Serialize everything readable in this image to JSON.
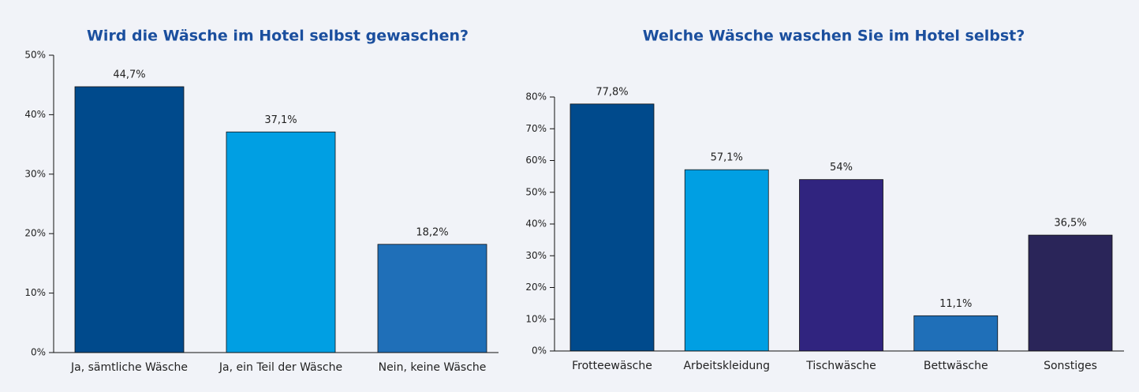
{
  "chart_data": [
    {
      "type": "bar",
      "title": "Wird die Wäsche im Hotel selbst gewaschen?",
      "categories": [
        "Ja, sämtliche Wäsche",
        "Ja, ein Teil der Wäsche",
        "Nein, keine Wäsche"
      ],
      "values": [
        44.7,
        37.1,
        18.2
      ],
      "value_labels": [
        "44,7%",
        "37,1%",
        "18,2%"
      ],
      "colors": [
        "#004a8c",
        "#009fe3",
        "#1f6fb8"
      ],
      "ylim": [
        0,
        50
      ],
      "yticks": [
        {
          "value": 0,
          "label": "0%"
        },
        {
          "value": 10,
          "label": "10%"
        },
        {
          "value": 20,
          "label": "20%"
        },
        {
          "value": 30,
          "label": "30%"
        },
        {
          "value": 40,
          "label": "40%"
        },
        {
          "value": 50,
          "label": "50%"
        }
      ]
    },
    {
      "type": "bar",
      "title": "Welche Wäsche waschen Sie im Hotel selbst?",
      "categories": [
        "Frotteewäsche",
        "Arbeitskleidung",
        "Tischwäsche",
        "Bettwäsche",
        "Sonstiges"
      ],
      "values": [
        77.8,
        57.1,
        54,
        11.1,
        36.5
      ],
      "value_labels": [
        "77,8%",
        "57,1%",
        "54%",
        "11,1%",
        "36,5%"
      ],
      "colors": [
        "#004a8c",
        "#009fe3",
        "#30247f",
        "#1f6fb8",
        "#2a2559"
      ],
      "ylim": [
        0,
        80
      ],
      "yticks": [
        {
          "value": 0,
          "label": "0%"
        },
        {
          "value": 10,
          "label": "10%"
        },
        {
          "value": 20,
          "label": "20%"
        },
        {
          "value": 30,
          "label": "30%"
        },
        {
          "value": 40,
          "label": "40%"
        },
        {
          "value": 50,
          "label": "50%"
        },
        {
          "value": 60,
          "label": "60%"
        },
        {
          "value": 70,
          "label": "70%"
        },
        {
          "value": 80,
          "label": "80%"
        }
      ]
    }
  ]
}
